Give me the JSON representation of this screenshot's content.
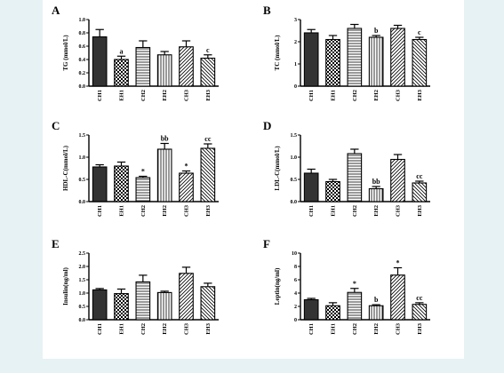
{
  "chart_data": [
    {
      "panel": "A",
      "type": "bar",
      "ylabel": "TG (mmol/L)",
      "categories": [
        "CH1",
        "EH1",
        "CH2",
        "EH2",
        "CH3",
        "EH3"
      ],
      "values": [
        0.74,
        0.4,
        0.58,
        0.47,
        0.59,
        0.42
      ],
      "errors": [
        0.11,
        0.05,
        0.1,
        0.05,
        0.09,
        0.05
      ],
      "labels": [
        "",
        "a",
        "",
        "",
        "",
        "c"
      ],
      "ylim": [
        0,
        1.0
      ],
      "yticks": [
        "0.0",
        "0.2",
        "0.4",
        "0.6",
        "0.8",
        "1.0"
      ]
    },
    {
      "panel": "B",
      "type": "bar",
      "ylabel": "TC (mmol/L)",
      "categories": [
        "CH1",
        "EH1",
        "CH2",
        "EH2",
        "CH3",
        "EH3"
      ],
      "values": [
        2.4,
        2.1,
        2.6,
        2.2,
        2.6,
        2.1
      ],
      "errors": [
        0.15,
        0.18,
        0.18,
        0.08,
        0.14,
        0.1
      ],
      "labels": [
        "",
        "",
        "",
        "b",
        "",
        "c"
      ],
      "ylim": [
        0,
        3
      ],
      "yticks": [
        "0",
        "1",
        "2",
        "3"
      ]
    },
    {
      "panel": "C",
      "type": "bar",
      "ylabel": "HDL-C(mmol/L)",
      "categories": [
        "CH1",
        "EH1",
        "CH2",
        "EH2",
        "CH3",
        "EH3"
      ],
      "values": [
        0.78,
        0.8,
        0.54,
        1.18,
        0.64,
        1.2
      ],
      "errors": [
        0.05,
        0.09,
        0.03,
        0.13,
        0.05,
        0.1
      ],
      "labels": [
        "",
        "",
        "*",
        "bb",
        "*",
        "cc"
      ],
      "ylim": [
        0,
        1.5
      ],
      "yticks": [
        "0.0",
        "0.5",
        "1.0",
        "1.5"
      ]
    },
    {
      "panel": "D",
      "type": "bar",
      "ylabel": "LDL-C(mmol/L)",
      "categories": [
        "CH1",
        "EH1",
        "CH2",
        "EH2",
        "CH3",
        "EH3"
      ],
      "values": [
        0.64,
        0.45,
        1.08,
        0.29,
        0.95,
        0.42
      ],
      "errors": [
        0.09,
        0.05,
        0.1,
        0.05,
        0.11,
        0.04
      ],
      "labels": [
        "",
        "",
        "",
        "bb",
        "",
        "cc"
      ],
      "ylim": [
        0,
        1.5
      ],
      "yticks": [
        "0.0",
        "0.5",
        "1.0",
        "1.5"
      ]
    },
    {
      "panel": "E",
      "type": "bar",
      "ylabel": "Insulin(ng/ml)",
      "categories": [
        "CH1",
        "EH1",
        "CH2",
        "EH2",
        "CH3",
        "EH3"
      ],
      "values": [
        1.12,
        0.98,
        1.42,
        1.02,
        1.74,
        1.24
      ],
      "errors": [
        0.05,
        0.17,
        0.25,
        0.05,
        0.23,
        0.13
      ],
      "labels": [
        "",
        "",
        "",
        "",
        "",
        ""
      ],
      "ylim": [
        0,
        2.5
      ],
      "yticks": [
        "0.0",
        "0.5",
        "1.0",
        "1.5",
        "2.0",
        "2.5"
      ]
    },
    {
      "panel": "F",
      "type": "bar",
      "ylabel": "Leptin(ng/ml)",
      "categories": [
        "CH1",
        "EH1",
        "CH2",
        "EH2",
        "CH3",
        "EH3"
      ],
      "values": [
        3.0,
        2.1,
        4.1,
        2.1,
        6.7,
        2.3
      ],
      "errors": [
        0.2,
        0.45,
        0.6,
        0.15,
        1.1,
        0.25
      ],
      "labels": [
        "",
        "",
        "*",
        "b",
        "*",
        "cc"
      ],
      "ylim": [
        0,
        10
      ],
      "yticks": [
        "0",
        "2",
        "4",
        "6",
        "8",
        "10"
      ]
    }
  ]
}
